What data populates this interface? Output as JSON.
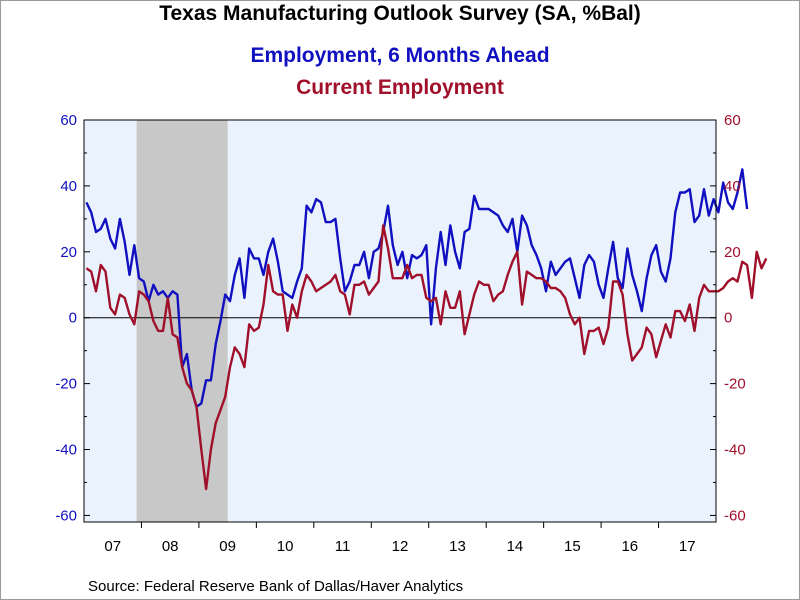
{
  "chart_data": {
    "type": "line",
    "title": "Texas Manufacturing Outlook Survey (SA, %Bal)",
    "x_tick_labels": [
      "07",
      "08",
      "09",
      "10",
      "11",
      "12",
      "13",
      "14",
      "15",
      "16",
      "17"
    ],
    "y_ticks": [
      "60",
      "40",
      "20",
      "0",
      "-20",
      "-40",
      "-60"
    ],
    "ylim": [
      -62,
      60
    ],
    "xlim": [
      "2007-01",
      "2017-12"
    ],
    "recession": {
      "start": "2007-12",
      "end": "2009-06"
    },
    "grid": false,
    "legend_position": "top",
    "colors": {
      "employment_6m_ahead": "#1010c0",
      "current_employment": "#a0102a",
      "recession": "#c8c8c8",
      "plot_bg": "#eaf3fd"
    },
    "series": [
      {
        "name": "Employment, 6 Months Ahead",
        "color": "#1010c0",
        "values": [
          35,
          32,
          26,
          27,
          30,
          24,
          21,
          30,
          23,
          13,
          22,
          12,
          11,
          5,
          10,
          7,
          8,
          6,
          8,
          7,
          -15,
          -11,
          -22,
          -27,
          -26,
          -19,
          -19,
          -8,
          -1,
          7,
          5,
          13,
          18,
          6,
          21,
          18,
          18,
          13,
          20,
          24,
          17,
          8,
          7,
          6,
          11,
          15,
          34,
          32,
          36,
          35,
          29,
          29,
          30,
          18,
          8,
          11,
          16,
          16,
          20,
          12,
          20,
          21,
          26,
          34,
          22,
          16,
          20,
          12,
          19,
          18,
          19,
          22,
          -2,
          15,
          26,
          16,
          28,
          20,
          15,
          26,
          27,
          37,
          33,
          33,
          33,
          32,
          31,
          28,
          26,
          30,
          20,
          31,
          28,
          22,
          19,
          15,
          8,
          17,
          13,
          15,
          17,
          18,
          12,
          6,
          16,
          19,
          17,
          10,
          6,
          15,
          23,
          12,
          9,
          21,
          13,
          8,
          2,
          12,
          19,
          22,
          14,
          11,
          18,
          32,
          38,
          38,
          39,
          29,
          31,
          39,
          31,
          36,
          32,
          41,
          35,
          33,
          38,
          45,
          33
        ]
      },
      {
        "name": "Current Employment",
        "color": "#a0102a",
        "values": [
          15,
          14,
          8,
          16,
          14,
          3,
          1,
          7,
          6,
          1,
          -2,
          8,
          7,
          5,
          -1,
          -4,
          -4,
          6,
          -5,
          -6,
          -15,
          -20,
          -22,
          -27,
          -40,
          -52,
          -40,
          -32,
          -28,
          -24,
          -15,
          -9,
          -11,
          -15,
          -2,
          -4,
          -3,
          4,
          16,
          8,
          7,
          7,
          -4,
          4,
          0,
          8,
          13,
          11,
          8,
          9,
          10,
          11,
          13,
          8,
          7,
          1,
          10,
          10,
          11,
          7,
          9,
          11,
          28,
          21,
          12,
          12,
          12,
          16,
          12,
          13,
          13,
          6,
          5,
          6,
          -2,
          8,
          3,
          3,
          8,
          -5,
          1,
          7,
          11,
          10,
          10,
          5,
          7,
          8,
          13,
          17,
          20,
          4,
          14,
          13,
          12,
          12,
          11,
          9,
          9,
          8,
          6,
          1,
          -2,
          0,
          -11,
          -4,
          -4,
          -3,
          -8,
          -3,
          11,
          11,
          7,
          -5,
          -13,
          -11,
          -9,
          -3,
          -5,
          -12,
          -7,
          -2,
          -6,
          2,
          2,
          -1,
          4,
          -4,
          6,
          10,
          8,
          8,
          8,
          9,
          11,
          12,
          11,
          17,
          16,
          6,
          20,
          15,
          18
        ]
      }
    ]
  },
  "source_text": "Source:  Federal Reserve Bank of Dallas/Haver Analytics"
}
